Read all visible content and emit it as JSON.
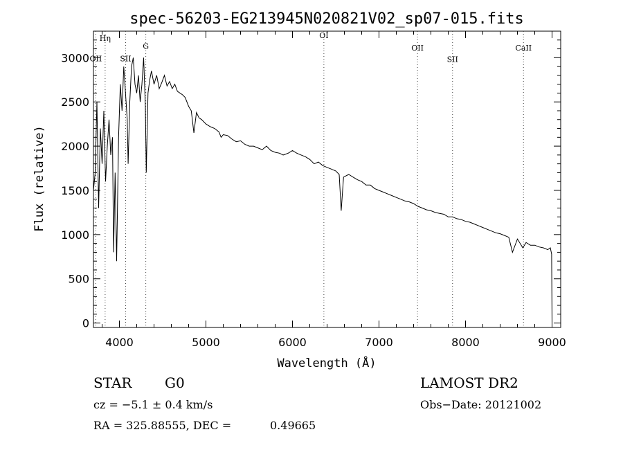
{
  "chart_data": {
    "type": "line",
    "title": "spec-56203-EG213945N020821V02_sp07-015.fits",
    "xlabel": "Wavelength (Å)",
    "ylabel": "Flux (relative)",
    "xlim": [
      3700,
      9100
    ],
    "ylim": [
      -50,
      3300
    ],
    "xticks": [
      4000,
      5000,
      6000,
      7000,
      8000,
      9000
    ],
    "yticks": [
      0,
      500,
      1000,
      1500,
      2000,
      2500,
      3000
    ],
    "grid": false,
    "lines": [
      {
        "label": "Hη",
        "x": 3835,
        "y": 3190
      },
      {
        "label": "OII",
        "x": 3727,
        "y": 2960
      },
      {
        "label": "SII",
        "x": 4072,
        "y": 2960
      },
      {
        "label": "G",
        "x": 4305,
        "y": 3100
      },
      {
        "label": "OI",
        "x": 6363,
        "y": 3220
      },
      {
        "label": "OII",
        "x": 7445,
        "y": 3080
      },
      {
        "label": "SII",
        "x": 7850,
        "y": 2950
      },
      {
        "label": "CaII",
        "x": 8670,
        "y": 3080
      }
    ],
    "series": [
      {
        "x": [
          3700,
          3720,
          3740,
          3760,
          3780,
          3800,
          3820,
          3840,
          3860,
          3880,
          3900,
          3920,
          3933,
          3950,
          3968,
          3990,
          4010,
          4030,
          4050,
          4070,
          4090,
          4101,
          4120,
          4140,
          4160,
          4180,
          4200,
          4220,
          4240,
          4260,
          4280,
          4300,
          4310,
          4330,
          4350,
          4370,
          4400,
          4430,
          4460,
          4490,
          4520,
          4550,
          4580,
          4610,
          4640,
          4670,
          4700,
          4730,
          4760,
          4800,
          4830,
          4861,
          4890,
          4920,
          4950,
          5000,
          5050,
          5100,
          5150,
          5175,
          5200,
          5250,
          5300,
          5350,
          5400,
          5450,
          5500,
          5550,
          5600,
          5650,
          5700,
          5750,
          5800,
          5850,
          5893,
          5950,
          6000,
          6050,
          6100,
          6150,
          6200,
          6250,
          6300,
          6350,
          6400,
          6450,
          6500,
          6540,
          6563,
          6590,
          6650,
          6700,
          6750,
          6800,
          6850,
          6900,
          6950,
          7000,
          7050,
          7100,
          7150,
          7200,
          7250,
          7300,
          7350,
          7400,
          7450,
          7500,
          7550,
          7600,
          7650,
          7700,
          7750,
          7800,
          7850,
          7900,
          7950,
          8000,
          8050,
          8100,
          8150,
          8200,
          8250,
          8300,
          8350,
          8400,
          8450,
          8500,
          8542,
          8600,
          8662,
          8700,
          8750,
          8800,
          8850,
          8900,
          8950,
          8980,
          8995,
          9000
        ],
        "values": [
          1500,
          1700,
          2500,
          1300,
          2200,
          1800,
          2400,
          1600,
          2000,
          2300,
          1900,
          2100,
          800,
          1700,
          700,
          2100,
          2700,
          2400,
          2900,
          2600,
          2300,
          1800,
          2500,
          2900,
          3000,
          2700,
          2600,
          2800,
          2500,
          2700,
          3000,
          2450,
          1700,
          2600,
          2750,
          2850,
          2700,
          2800,
          2650,
          2720,
          2800,
          2680,
          2730,
          2650,
          2700,
          2620,
          2600,
          2580,
          2550,
          2450,
          2400,
          2150,
          2380,
          2320,
          2300,
          2250,
          2220,
          2200,
          2160,
          2100,
          2130,
          2120,
          2080,
          2050,
          2060,
          2020,
          2000,
          2000,
          1980,
          1960,
          2000,
          1950,
          1930,
          1920,
          1900,
          1920,
          1950,
          1920,
          1900,
          1880,
          1850,
          1800,
          1820,
          1780,
          1760,
          1740,
          1720,
          1680,
          1270,
          1650,
          1680,
          1650,
          1620,
          1600,
          1560,
          1560,
          1520,
          1500,
          1480,
          1460,
          1440,
          1420,
          1400,
          1380,
          1370,
          1350,
          1320,
          1300,
          1280,
          1270,
          1250,
          1240,
          1230,
          1200,
          1200,
          1180,
          1170,
          1150,
          1140,
          1120,
          1100,
          1080,
          1060,
          1040,
          1020,
          1010,
          990,
          970,
          800,
          950,
          850,
          910,
          880,
          880,
          860,
          850,
          830,
          850,
          780,
          0
        ]
      }
    ]
  },
  "info": {
    "object_class": "STAR",
    "subclass": "G0",
    "survey": "LAMOST DR2",
    "cz": "cz = −5.1 ± 0.4 km/s",
    "obs_date": "Obs−Date: 20121002",
    "coords_prefix": "RA = 325.88555, DEC =",
    "dec_value": "0.49665"
  }
}
